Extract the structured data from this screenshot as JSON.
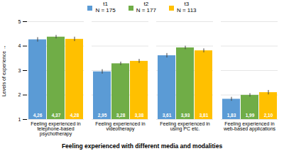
{
  "chart_data": {
    "type": "bar",
    "categories": [
      "Feeling experienced in\ntelephone-based\npsychotherapy",
      "Feeling experienced in\nvideotherapy",
      "Feeling experienced in\nusing PC etc.",
      "Feeling experienced in\nweb-based applications"
    ],
    "series": [
      {
        "name": "t1\nN = 175",
        "color": "#5B9BD5",
        "values": [
          4.26,
          2.95,
          3.61,
          1.83
        ],
        "errors": [
          0.09,
          0.09,
          0.09,
          0.08
        ],
        "value_labels": [
          "4,26",
          "2,95",
          "3,61",
          "1,83"
        ]
      },
      {
        "name": "t2\nN = 177",
        "color": "#70AD47",
        "values": [
          4.37,
          3.28,
          3.93,
          1.99
        ],
        "errors": [
          0.07,
          0.07,
          0.07,
          0.07
        ],
        "value_labels": [
          "4,37",
          "3,28",
          "3,93",
          "1,99"
        ]
      },
      {
        "name": "t3\nN = 113",
        "color": "#FFC000",
        "values": [
          4.28,
          3.38,
          3.81,
          2.1
        ],
        "errors": [
          0.09,
          0.08,
          0.08,
          0.09
        ],
        "value_labels": [
          "4,28",
          "3,38",
          "3,81",
          "2,10"
        ]
      }
    ],
    "xlabel": "Feeling experienced with different media and modalities",
    "ylabel": "Levels of experience",
    "ylim": [
      1,
      5
    ],
    "yticks": [
      1,
      2,
      3,
      4,
      5
    ],
    "grid": true,
    "legend": "top",
    "data_labels": true
  }
}
